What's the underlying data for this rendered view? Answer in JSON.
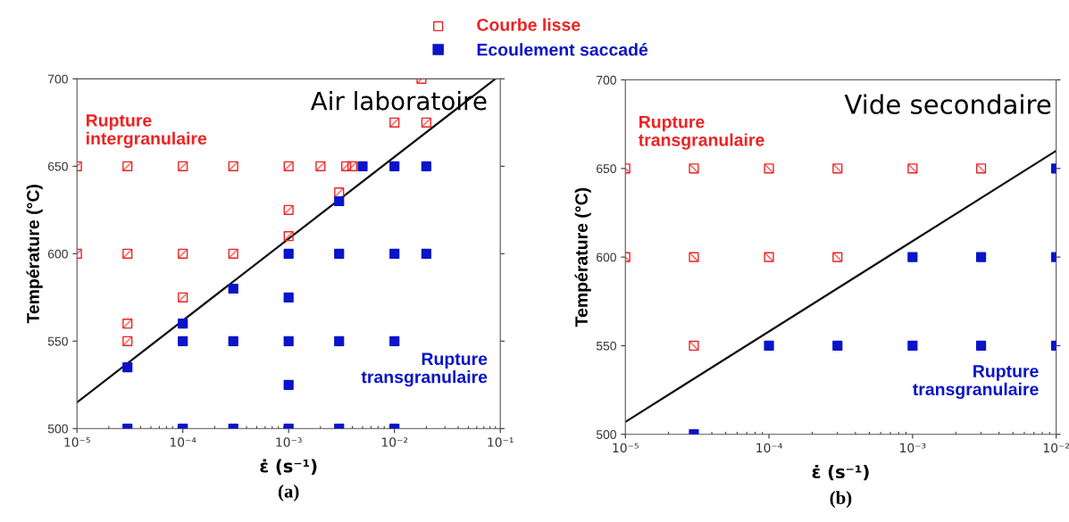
{
  "chart_data": [
    {
      "type": "scatter",
      "title": "(a)",
      "xlabel": "ε̇ (s⁻¹)",
      "ylabel": "Température (°C)",
      "log": "x",
      "legend": "top",
      "xlim": [
        1e-05,
        0.1
      ],
      "ylim": [
        500,
        700
      ],
      "xticks": [
        {
          "value": 1e-05,
          "label": "10⁻⁵"
        },
        {
          "value": 0.0001,
          "label": "10⁻⁴"
        },
        {
          "value": 0.001,
          "label": "10⁻³"
        },
        {
          "value": 0.01,
          "label": "10⁻²"
        },
        {
          "value": 0.1,
          "label": "10⁻¹"
        }
      ],
      "yticks": [
        500,
        550,
        600,
        650,
        700
      ],
      "annotations": [
        "Air laboratoire",
        "Rupture intergranulaire",
        "Rupture transgranulaire"
      ],
      "series": [
        {
          "name": "Courbe lisse",
          "color": "#ee2222",
          "marker": "square",
          "x": [
            1e-05,
            3e-05,
            0.0001,
            0.0003,
            0.001,
            0.002,
            0.0035,
            0.004,
            0.018,
            0.01,
            0.02,
            0.003,
            0.001,
            0.001,
            1e-05,
            3e-05,
            0.0001,
            0.0003,
            0.0001,
            3e-05,
            3e-05
          ],
          "values": [
            650,
            650,
            650,
            650,
            650,
            650,
            650,
            650,
            700,
            675,
            675,
            635,
            625,
            610,
            600,
            600,
            600,
            600,
            575,
            560,
            550
          ]
        },
        {
          "name": "Ecoulement saccadé",
          "color": "#0a14c8",
          "marker": "square",
          "x": [
            0.005,
            0.01,
            0.02,
            0.003,
            0.001,
            0.003,
            0.01,
            0.02,
            0.0003,
            0.001,
            0.0001,
            0.0001,
            0.0003,
            0.001,
            0.003,
            0.01,
            3e-05,
            0.001,
            3e-05,
            0.0001,
            0.0003,
            0.001,
            0.003,
            0.01
          ],
          "values": [
            650,
            650,
            650,
            630,
            600,
            600,
            600,
            600,
            580,
            575,
            560,
            550,
            550,
            550,
            550,
            550,
            535,
            525,
            500,
            500,
            500,
            500,
            500,
            500
          ]
        },
        {
          "type": "line",
          "color": "#111111",
          "marker": "none",
          "x": [
            1e-05,
            0.09
          ],
          "values": [
            515,
            700
          ]
        }
      ]
    },
    {
      "type": "scatter",
      "title": "(b)",
      "xlabel": "ε̇ (s⁻¹)",
      "ylabel": "Température (°C)",
      "log": "x",
      "xlim": [
        1e-05,
        0.01
      ],
      "ylim": [
        500,
        700
      ],
      "xticks": [
        {
          "value": 1e-05,
          "label": "10⁻⁵"
        },
        {
          "value": 0.0001,
          "label": "10⁻⁴"
        },
        {
          "value": 0.001,
          "label": "10⁻³"
        },
        {
          "value": 0.01,
          "label": "10⁻²"
        }
      ],
      "yticks": [
        500,
        550,
        600,
        650,
        700
      ],
      "annotations": [
        "Vide secondaire",
        "Rupture transgranulaire",
        "Rupture transgranulaire"
      ],
      "series": [
        {
          "color": "#ee2222",
          "marker": "square",
          "x": [
            1e-05,
            3e-05,
            0.0001,
            0.0003,
            0.001,
            0.003,
            1e-05,
            3e-05,
            0.0001,
            0.0003,
            3e-05
          ],
          "values": [
            650,
            650,
            650,
            650,
            650,
            650,
            600,
            600,
            600,
            600,
            550
          ]
        },
        {
          "color": "#0a14c8",
          "marker": "square",
          "x": [
            0.01,
            0.001,
            0.003,
            0.01,
            0.0001,
            0.0003,
            0.001,
            0.003,
            0.01,
            3e-05
          ],
          "values": [
            650,
            600,
            600,
            600,
            550,
            550,
            550,
            550,
            550,
            500
          ]
        },
        {
          "type": "line",
          "color": "#111111",
          "marker": "none",
          "x": [
            1e-05,
            0.01
          ],
          "values": [
            507,
            660
          ]
        }
      ]
    }
  ]
}
